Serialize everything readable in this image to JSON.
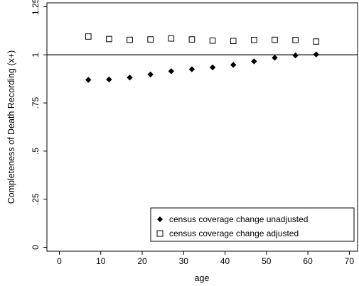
{
  "chart_data": {
    "type": "scatter",
    "xlabel": "age",
    "ylabel": "Completeness of Death Recording (x+)",
    "xlim": [
      -3,
      72
    ],
    "ylim": [
      -0.02,
      1.27
    ],
    "x_ticks": [
      0,
      10,
      20,
      30,
      40,
      50,
      60,
      70
    ],
    "x_tick_labels": [
      "0",
      "10",
      "20",
      "30",
      "40",
      "50",
      "60",
      "70"
    ],
    "y_ticks": [
      0,
      0.25,
      0.5,
      0.75,
      1,
      1.25
    ],
    "y_tick_labels": [
      "0",
      ".25",
      ".5",
      ".75",
      "1",
      "1.25"
    ],
    "reference_line_y": 1,
    "grid": false,
    "legend_position": "bottom-right",
    "series": [
      {
        "name": "census coverage change unadjusted",
        "marker": "filled-diamond",
        "color": "#000000",
        "x": [
          7,
          12,
          17,
          22,
          27,
          32,
          37,
          42,
          47,
          52,
          57,
          62
        ],
        "y": [
          0.87,
          0.872,
          0.882,
          0.898,
          0.915,
          0.925,
          0.935,
          0.948,
          0.966,
          0.985,
          0.997,
          1.002
        ]
      },
      {
        "name": "census coverage change adjusted",
        "marker": "hollow-square",
        "color": "#000000",
        "x": [
          7,
          12,
          17,
          22,
          27,
          32,
          37,
          42,
          47,
          52,
          57,
          62
        ],
        "y": [
          1.095,
          1.082,
          1.078,
          1.08,
          1.085,
          1.08,
          1.074,
          1.072,
          1.077,
          1.078,
          1.077,
          1.069
        ]
      }
    ]
  }
}
